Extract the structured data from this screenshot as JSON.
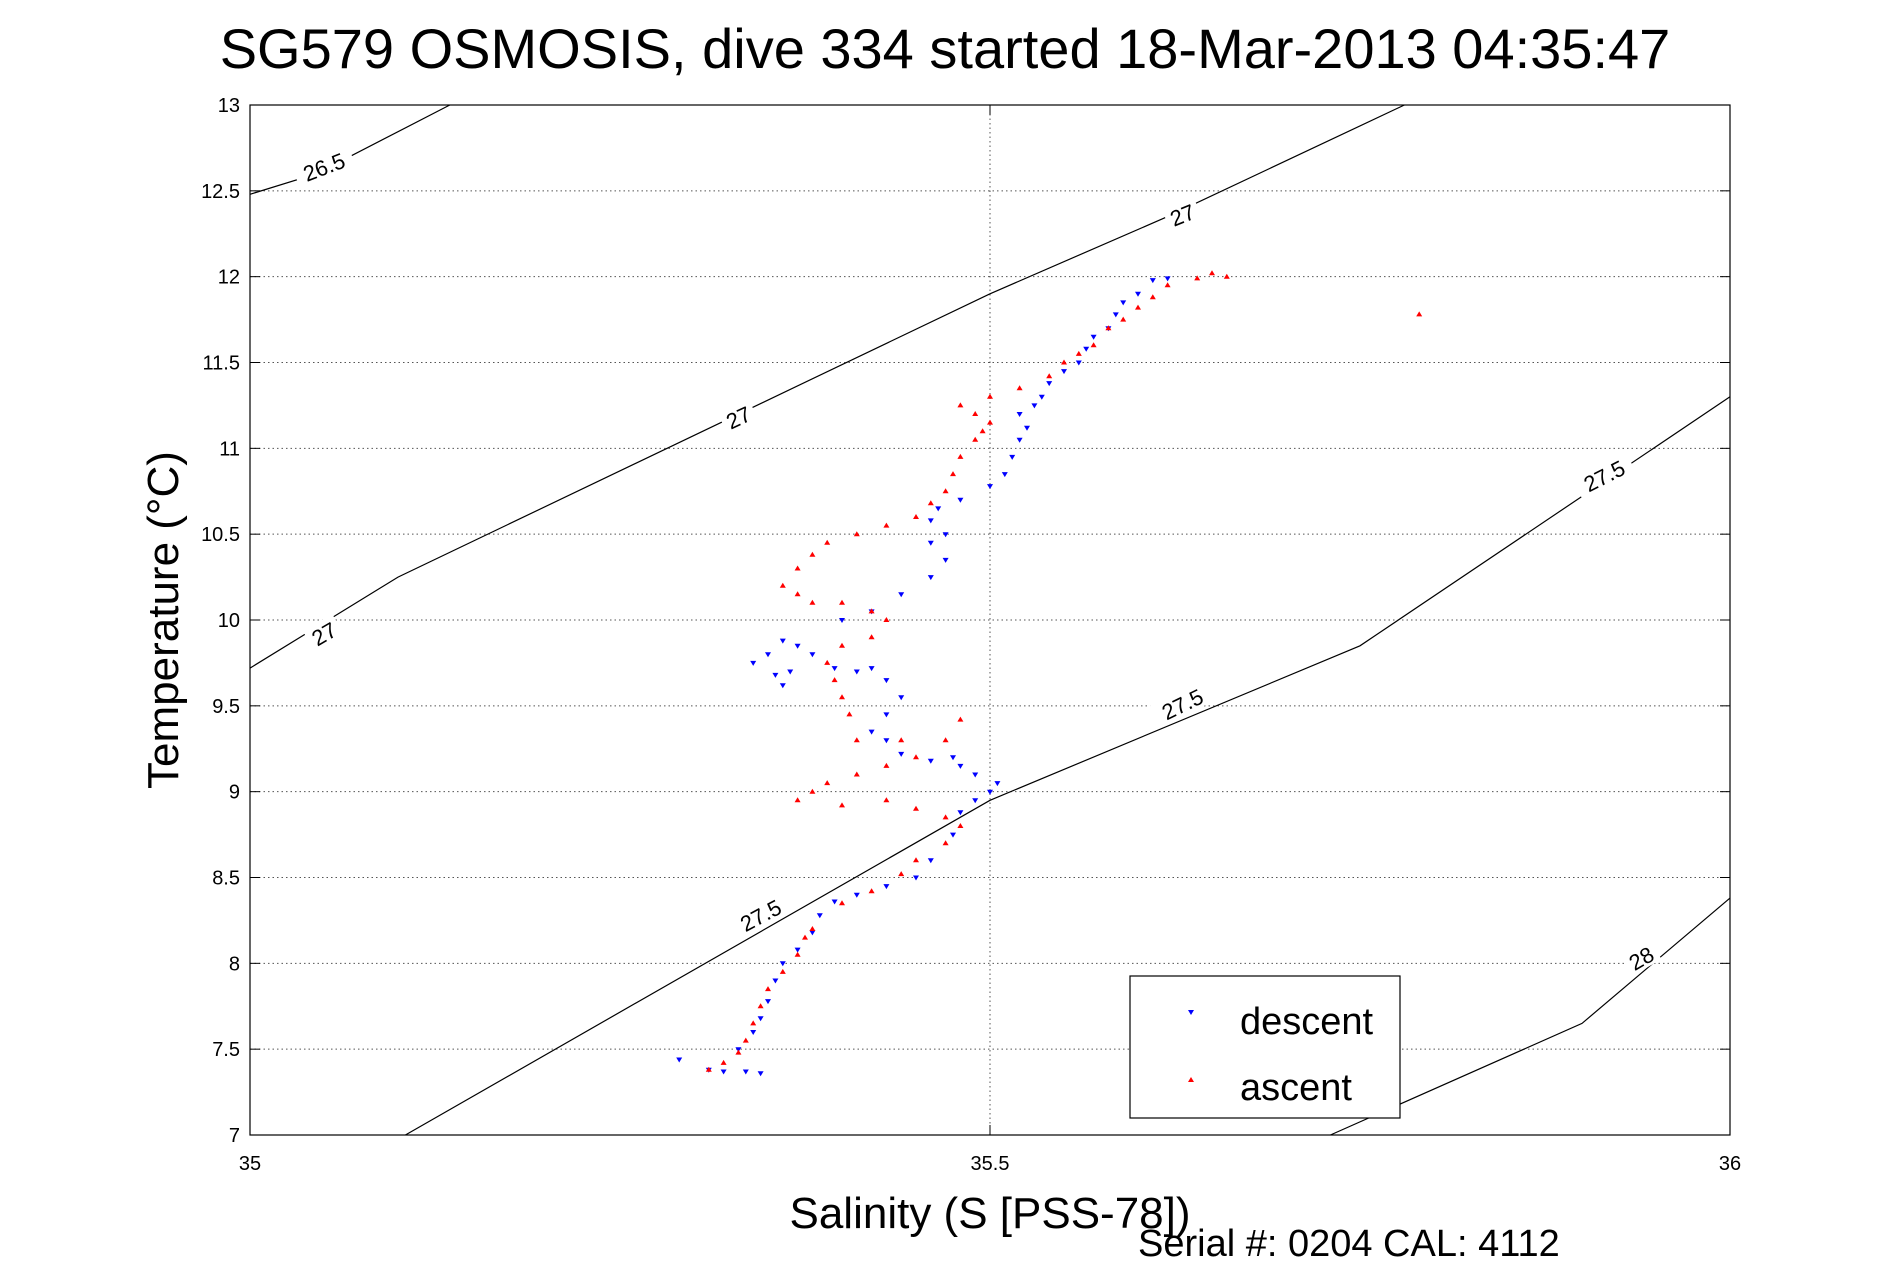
{
  "chart_data": {
    "type": "scatter",
    "title": "SG579 OSMOSIS, dive 334 started 18-Mar-2013 04:35:47",
    "xlabel": "Salinity (S [PSS-78])",
    "ylabel": "Temperature (°C)",
    "xlim": [
      35,
      36
    ],
    "ylim": [
      7,
      13
    ],
    "x_ticks": [
      "35",
      "35.5",
      "36"
    ],
    "y_ticks": [
      "7",
      "7.5",
      "8",
      "8.5",
      "9",
      "9.5",
      "10",
      "10.5",
      "11",
      "11.5",
      "12",
      "12.5",
      "13"
    ],
    "grid": true,
    "legend_position": "bottom-right",
    "footer": "Serial #: 0204  CAL: 4112",
    "colors": {
      "descent": "#0000ff",
      "ascent": "#ff0000",
      "contour": "#000000"
    },
    "contours": [
      {
        "label": "26.5",
        "points": [
          [
            35.0,
            12.48
          ],
          [
            35.045,
            12.6
          ],
          [
            35.135,
            13.0
          ]
        ]
      },
      {
        "label": "27",
        "points": [
          [
            35.0,
            9.72
          ],
          [
            35.1,
            10.25
          ],
          [
            35.5,
            11.9
          ],
          [
            35.62,
            12.35
          ],
          [
            35.78,
            13.0
          ]
        ]
      },
      {
        "label": "27.5",
        "points": [
          [
            35.105,
            7.0
          ],
          [
            35.5,
            8.95
          ],
          [
            35.75,
            9.85
          ],
          [
            36.0,
            11.3
          ]
        ]
      },
      {
        "label": "28",
        "points": [
          [
            35.73,
            7.0
          ],
          [
            35.9,
            7.65
          ],
          [
            36.0,
            8.38
          ]
        ]
      }
    ],
    "contour_labels": [
      {
        "text": "26.5",
        "x": 35.05,
        "y": 12.64,
        "angle": -21
      },
      {
        "text": "27",
        "x": 35.05,
        "y": 9.92,
        "angle": -30
      },
      {
        "text": "27",
        "x": 35.33,
        "y": 11.18,
        "angle": -25
      },
      {
        "text": "27",
        "x": 35.63,
        "y": 12.36,
        "angle": -22
      },
      {
        "text": "27.5",
        "x": 35.345,
        "y": 8.28,
        "angle": -28
      },
      {
        "text": "27.5",
        "x": 35.63,
        "y": 9.51,
        "angle": -26
      },
      {
        "text": "27.5",
        "x": 35.915,
        "y": 10.84,
        "angle": -27
      },
      {
        "text": "28",
        "x": 35.94,
        "y": 8.03,
        "angle": -30
      }
    ],
    "series": [
      {
        "name": "descent",
        "marker": "triangle-down",
        "points": [
          [
            35.29,
            7.44
          ],
          [
            35.31,
            7.38
          ],
          [
            35.32,
            7.37
          ],
          [
            35.335,
            7.37
          ],
          [
            35.345,
            7.36
          ],
          [
            35.33,
            7.5
          ],
          [
            35.34,
            7.6
          ],
          [
            35.345,
            7.68
          ],
          [
            35.35,
            7.78
          ],
          [
            35.355,
            7.9
          ],
          [
            35.36,
            8.0
          ],
          [
            35.37,
            8.08
          ],
          [
            35.38,
            8.18
          ],
          [
            35.385,
            8.28
          ],
          [
            35.395,
            8.36
          ],
          [
            35.41,
            8.4
          ],
          [
            35.43,
            8.45
          ],
          [
            35.45,
            8.5
          ],
          [
            35.46,
            8.6
          ],
          [
            35.475,
            8.75
          ],
          [
            35.48,
            8.88
          ],
          [
            35.49,
            8.95
          ],
          [
            35.5,
            9.0
          ],
          [
            35.505,
            9.05
          ],
          [
            35.49,
            9.1
          ],
          [
            35.48,
            9.15
          ],
          [
            35.475,
            9.2
          ],
          [
            35.46,
            9.18
          ],
          [
            35.44,
            9.22
          ],
          [
            35.43,
            9.3
          ],
          [
            35.42,
            9.35
          ],
          [
            35.43,
            9.45
          ],
          [
            35.44,
            9.55
          ],
          [
            35.43,
            9.65
          ],
          [
            35.42,
            9.72
          ],
          [
            35.41,
            9.7
          ],
          [
            35.395,
            9.72
          ],
          [
            35.38,
            9.8
          ],
          [
            35.37,
            9.85
          ],
          [
            35.36,
            9.88
          ],
          [
            35.35,
            9.8
          ],
          [
            35.34,
            9.75
          ],
          [
            35.355,
            9.68
          ],
          [
            35.36,
            9.62
          ],
          [
            35.365,
            9.7
          ],
          [
            35.4,
            10.0
          ],
          [
            35.42,
            10.05
          ],
          [
            35.44,
            10.15
          ],
          [
            35.46,
            10.25
          ],
          [
            35.47,
            10.35
          ],
          [
            35.46,
            10.45
          ],
          [
            35.47,
            10.5
          ],
          [
            35.46,
            10.58
          ],
          [
            35.465,
            10.65
          ],
          [
            35.48,
            10.7
          ],
          [
            35.5,
            10.78
          ],
          [
            35.51,
            10.85
          ],
          [
            35.515,
            10.95
          ],
          [
            35.52,
            11.05
          ],
          [
            35.525,
            11.12
          ],
          [
            35.52,
            11.2
          ],
          [
            35.53,
            11.25
          ],
          [
            35.535,
            11.3
          ],
          [
            35.54,
            11.38
          ],
          [
            35.55,
            11.45
          ],
          [
            35.56,
            11.5
          ],
          [
            35.565,
            11.58
          ],
          [
            35.57,
            11.65
          ],
          [
            35.58,
            11.7
          ],
          [
            35.585,
            11.78
          ],
          [
            35.59,
            11.85
          ],
          [
            35.6,
            11.9
          ],
          [
            35.61,
            11.98
          ],
          [
            35.62,
            11.99
          ]
        ]
      },
      {
        "name": "ascent",
        "marker": "triangle-up",
        "points": [
          [
            35.31,
            7.38
          ],
          [
            35.32,
            7.42
          ],
          [
            35.33,
            7.48
          ],
          [
            35.335,
            7.55
          ],
          [
            35.34,
            7.65
          ],
          [
            35.345,
            7.75
          ],
          [
            35.35,
            7.85
          ],
          [
            35.36,
            7.95
          ],
          [
            35.37,
            8.05
          ],
          [
            35.375,
            8.15
          ],
          [
            35.38,
            8.2
          ],
          [
            35.4,
            8.35
          ],
          [
            35.42,
            8.42
          ],
          [
            35.44,
            8.52
          ],
          [
            35.45,
            8.6
          ],
          [
            35.47,
            8.7
          ],
          [
            35.48,
            8.8
          ],
          [
            35.47,
            8.85
          ],
          [
            35.45,
            8.9
          ],
          [
            35.43,
            8.95
          ],
          [
            35.4,
            8.92
          ],
          [
            35.38,
            9.0
          ],
          [
            35.37,
            8.95
          ],
          [
            35.39,
            9.05
          ],
          [
            35.41,
            9.1
          ],
          [
            35.43,
            9.15
          ],
          [
            35.45,
            9.2
          ],
          [
            35.47,
            9.3
          ],
          [
            35.48,
            9.42
          ],
          [
            35.44,
            9.3
          ],
          [
            35.41,
            9.3
          ],
          [
            35.405,
            9.45
          ],
          [
            35.4,
            9.55
          ],
          [
            35.395,
            9.65
          ],
          [
            35.39,
            9.75
          ],
          [
            35.4,
            9.85
          ],
          [
            35.42,
            9.9
          ],
          [
            35.43,
            10.0
          ],
          [
            35.42,
            10.05
          ],
          [
            35.4,
            10.1
          ],
          [
            35.38,
            10.1
          ],
          [
            35.37,
            10.15
          ],
          [
            35.36,
            10.2
          ],
          [
            35.37,
            10.3
          ],
          [
            35.38,
            10.38
          ],
          [
            35.39,
            10.45
          ],
          [
            35.41,
            10.5
          ],
          [
            35.43,
            10.55
          ],
          [
            35.45,
            10.6
          ],
          [
            35.46,
            10.68
          ],
          [
            35.47,
            10.75
          ],
          [
            35.475,
            10.85
          ],
          [
            35.48,
            10.95
          ],
          [
            35.49,
            11.05
          ],
          [
            35.495,
            11.1
          ],
          [
            35.5,
            11.15
          ],
          [
            35.49,
            11.2
          ],
          [
            35.48,
            11.25
          ],
          [
            35.5,
            11.3
          ],
          [
            35.52,
            11.35
          ],
          [
            35.54,
            11.42
          ],
          [
            35.55,
            11.5
          ],
          [
            35.56,
            11.55
          ],
          [
            35.57,
            11.6
          ],
          [
            35.58,
            11.7
          ],
          [
            35.59,
            11.75
          ],
          [
            35.6,
            11.82
          ],
          [
            35.61,
            11.88
          ],
          [
            35.62,
            11.95
          ],
          [
            35.64,
            11.99
          ],
          [
            35.65,
            12.02
          ],
          [
            35.66,
            12.0
          ],
          [
            35.79,
            11.78
          ]
        ]
      }
    ]
  }
}
